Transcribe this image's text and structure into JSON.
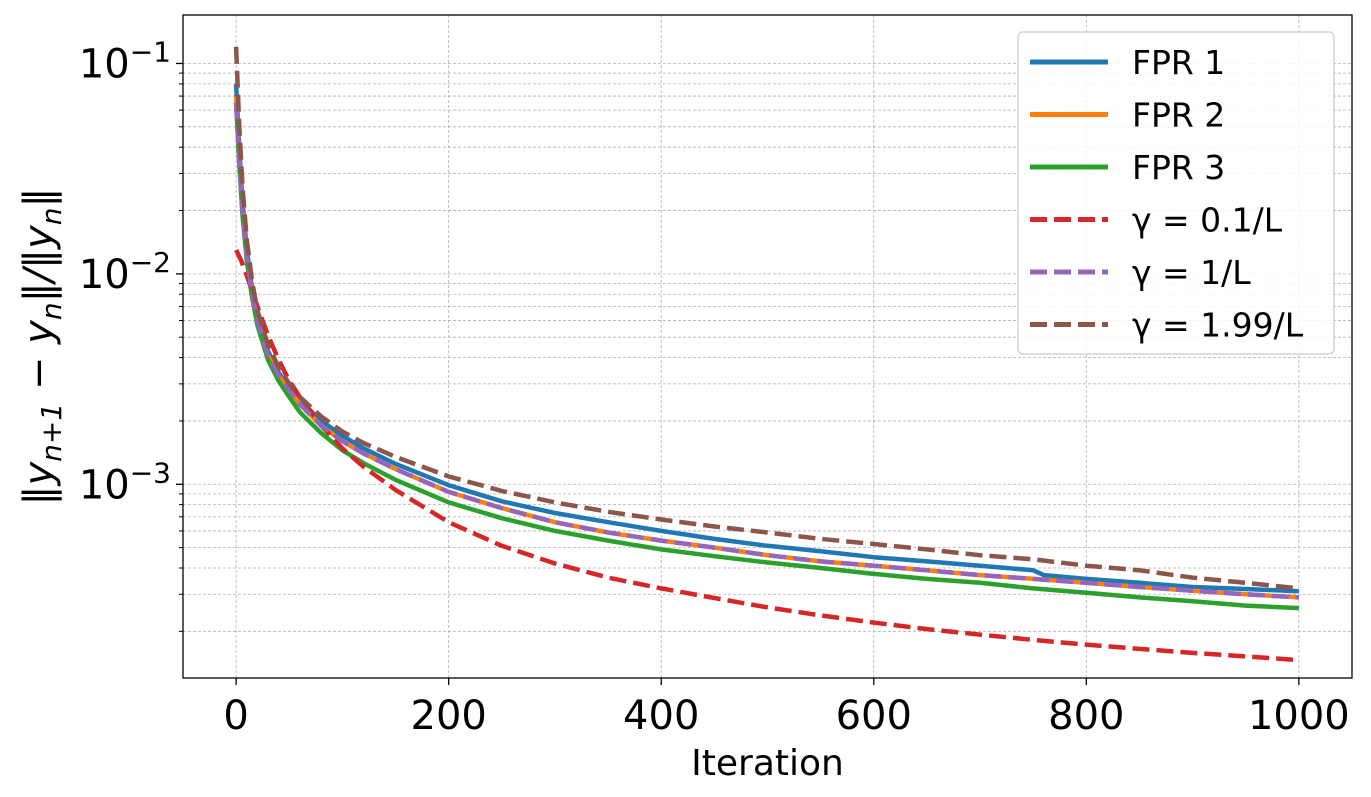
{
  "chart_data": {
    "type": "line",
    "title": "",
    "xlabel": "Iteration",
    "ylabel": "‖y_{n+1} − y_n‖/‖y_n‖",
    "y_scale": "log",
    "xlim": [
      -50,
      1050
    ],
    "ylim": [
      0.00012,
      0.17
    ],
    "grid": true,
    "legend_position": "top-right",
    "x_ticks": [
      0,
      200,
      400,
      600,
      800,
      1000
    ],
    "y_ticks": [
      {
        "value": 0.1,
        "base": "10",
        "exp": "−1"
      },
      {
        "value": 0.01,
        "base": "10",
        "exp": "−2"
      },
      {
        "value": 0.001,
        "base": "10",
        "exp": "−3"
      }
    ],
    "series": [
      {
        "name": "FPR 1",
        "color": "#1f77b4",
        "style": "solid",
        "x": [
          0,
          3,
          6,
          10,
          15,
          20,
          30,
          40,
          50,
          60,
          80,
          100,
          120,
          150,
          200,
          250,
          300,
          350,
          400,
          450,
          500,
          550,
          600,
          650,
          700,
          750,
          760,
          800,
          850,
          900,
          950,
          1000
        ],
        "y": [
          0.08,
          0.04,
          0.022,
          0.013,
          0.0085,
          0.0062,
          0.0043,
          0.0034,
          0.0029,
          0.0025,
          0.002,
          0.0017,
          0.00148,
          0.00125,
          0.00099,
          0.00083,
          0.00073,
          0.00066,
          0.0006,
          0.00055,
          0.00051,
          0.00048,
          0.00045,
          0.00043,
          0.00041,
          0.00039,
          0.00037,
          0.000355,
          0.00034,
          0.000325,
          0.000318,
          0.00031
        ]
      },
      {
        "name": "FPR 2",
        "color": "#ff7f0e",
        "style": "solid",
        "x": [
          0,
          3,
          6,
          10,
          15,
          20,
          30,
          40,
          50,
          60,
          80,
          100,
          120,
          150,
          200,
          250,
          300,
          350,
          400,
          450,
          500,
          550,
          600,
          650,
          700,
          750,
          800,
          850,
          900,
          950,
          1000
        ],
        "y": [
          0.07,
          0.035,
          0.02,
          0.012,
          0.008,
          0.006,
          0.0041,
          0.0033,
          0.0028,
          0.0024,
          0.0019,
          0.0016,
          0.0014,
          0.00118,
          0.00092,
          0.00077,
          0.00066,
          0.00059,
          0.00054,
          0.0005,
          0.00046,
          0.00043,
          0.00041,
          0.00039,
          0.00037,
          0.000355,
          0.00034,
          0.000325,
          0.000312,
          0.0003,
          0.00029
        ]
      },
      {
        "name": "FPR 3",
        "color": "#2ca02c",
        "style": "solid",
        "x": [
          0,
          3,
          6,
          10,
          15,
          20,
          30,
          40,
          50,
          60,
          80,
          100,
          120,
          150,
          200,
          250,
          300,
          350,
          400,
          450,
          500,
          550,
          600,
          650,
          700,
          750,
          800,
          850,
          900,
          950,
          1000
        ],
        "y": [
          0.065,
          0.033,
          0.019,
          0.0115,
          0.0077,
          0.0057,
          0.0039,
          0.0031,
          0.0026,
          0.0022,
          0.00175,
          0.00145,
          0.00126,
          0.00105,
          0.00082,
          0.00069,
          0.0006,
          0.00054,
          0.00049,
          0.000455,
          0.000425,
          0.0004,
          0.000375,
          0.000355,
          0.00034,
          0.00032,
          0.000305,
          0.00029,
          0.000278,
          0.000265,
          0.000258
        ]
      },
      {
        "name": "γ = 0.1/L",
        "color": "#d62728",
        "style": "dashed",
        "x": [
          0,
          5,
          10,
          15,
          20,
          30,
          40,
          50,
          60,
          80,
          100,
          120,
          150,
          200,
          250,
          300,
          350,
          400,
          450,
          500,
          550,
          600,
          650,
          700,
          750,
          800,
          850,
          900,
          950,
          1000
        ],
        "y": [
          0.013,
          0.0115,
          0.0098,
          0.0083,
          0.007,
          0.0051,
          0.0039,
          0.0031,
          0.0026,
          0.0019,
          0.00148,
          0.00121,
          0.00094,
          0.00066,
          0.00051,
          0.00042,
          0.00036,
          0.00032,
          0.000288,
          0.00026,
          0.000238,
          0.00022,
          0.000205,
          0.000193,
          0.000182,
          0.000173,
          0.000165,
          0.000158,
          0.000152,
          0.000146
        ]
      },
      {
        "name": "γ = 1/L",
        "color": "#9467bd",
        "style": "dashed",
        "x": [
          0,
          3,
          6,
          10,
          15,
          20,
          30,
          40,
          50,
          60,
          80,
          100,
          120,
          150,
          200,
          250,
          300,
          350,
          400,
          450,
          500,
          550,
          600,
          650,
          700,
          750,
          800,
          850,
          900,
          950,
          1000
        ],
        "y": [
          0.065,
          0.034,
          0.02,
          0.012,
          0.008,
          0.006,
          0.0041,
          0.0033,
          0.0028,
          0.0024,
          0.0019,
          0.0016,
          0.0014,
          0.00118,
          0.00092,
          0.00077,
          0.00066,
          0.00059,
          0.00054,
          0.0005,
          0.00046,
          0.00043,
          0.00041,
          0.00039,
          0.00037,
          0.000355,
          0.00034,
          0.000325,
          0.000312,
          0.0003,
          0.00029
        ]
      },
      {
        "name": "γ = 1.99/L",
        "color": "#8c564b",
        "style": "dashed",
        "x": [
          0,
          3,
          6,
          10,
          15,
          20,
          30,
          40,
          50,
          60,
          80,
          100,
          120,
          150,
          200,
          250,
          300,
          350,
          400,
          450,
          500,
          550,
          600,
          650,
          700,
          750,
          800,
          850,
          900,
          950,
          1000
        ],
        "y": [
          0.12,
          0.05,
          0.026,
          0.0145,
          0.0092,
          0.0067,
          0.0046,
          0.0036,
          0.003,
          0.0026,
          0.0021,
          0.00178,
          0.00157,
          0.00135,
          0.00109,
          0.00093,
          0.00082,
          0.00074,
          0.00068,
          0.00063,
          0.00059,
          0.00055,
          0.00052,
          0.00049,
          0.00046,
          0.00044,
          0.00041,
          0.00039,
          0.00036,
          0.00034,
          0.00032
        ]
      }
    ]
  }
}
